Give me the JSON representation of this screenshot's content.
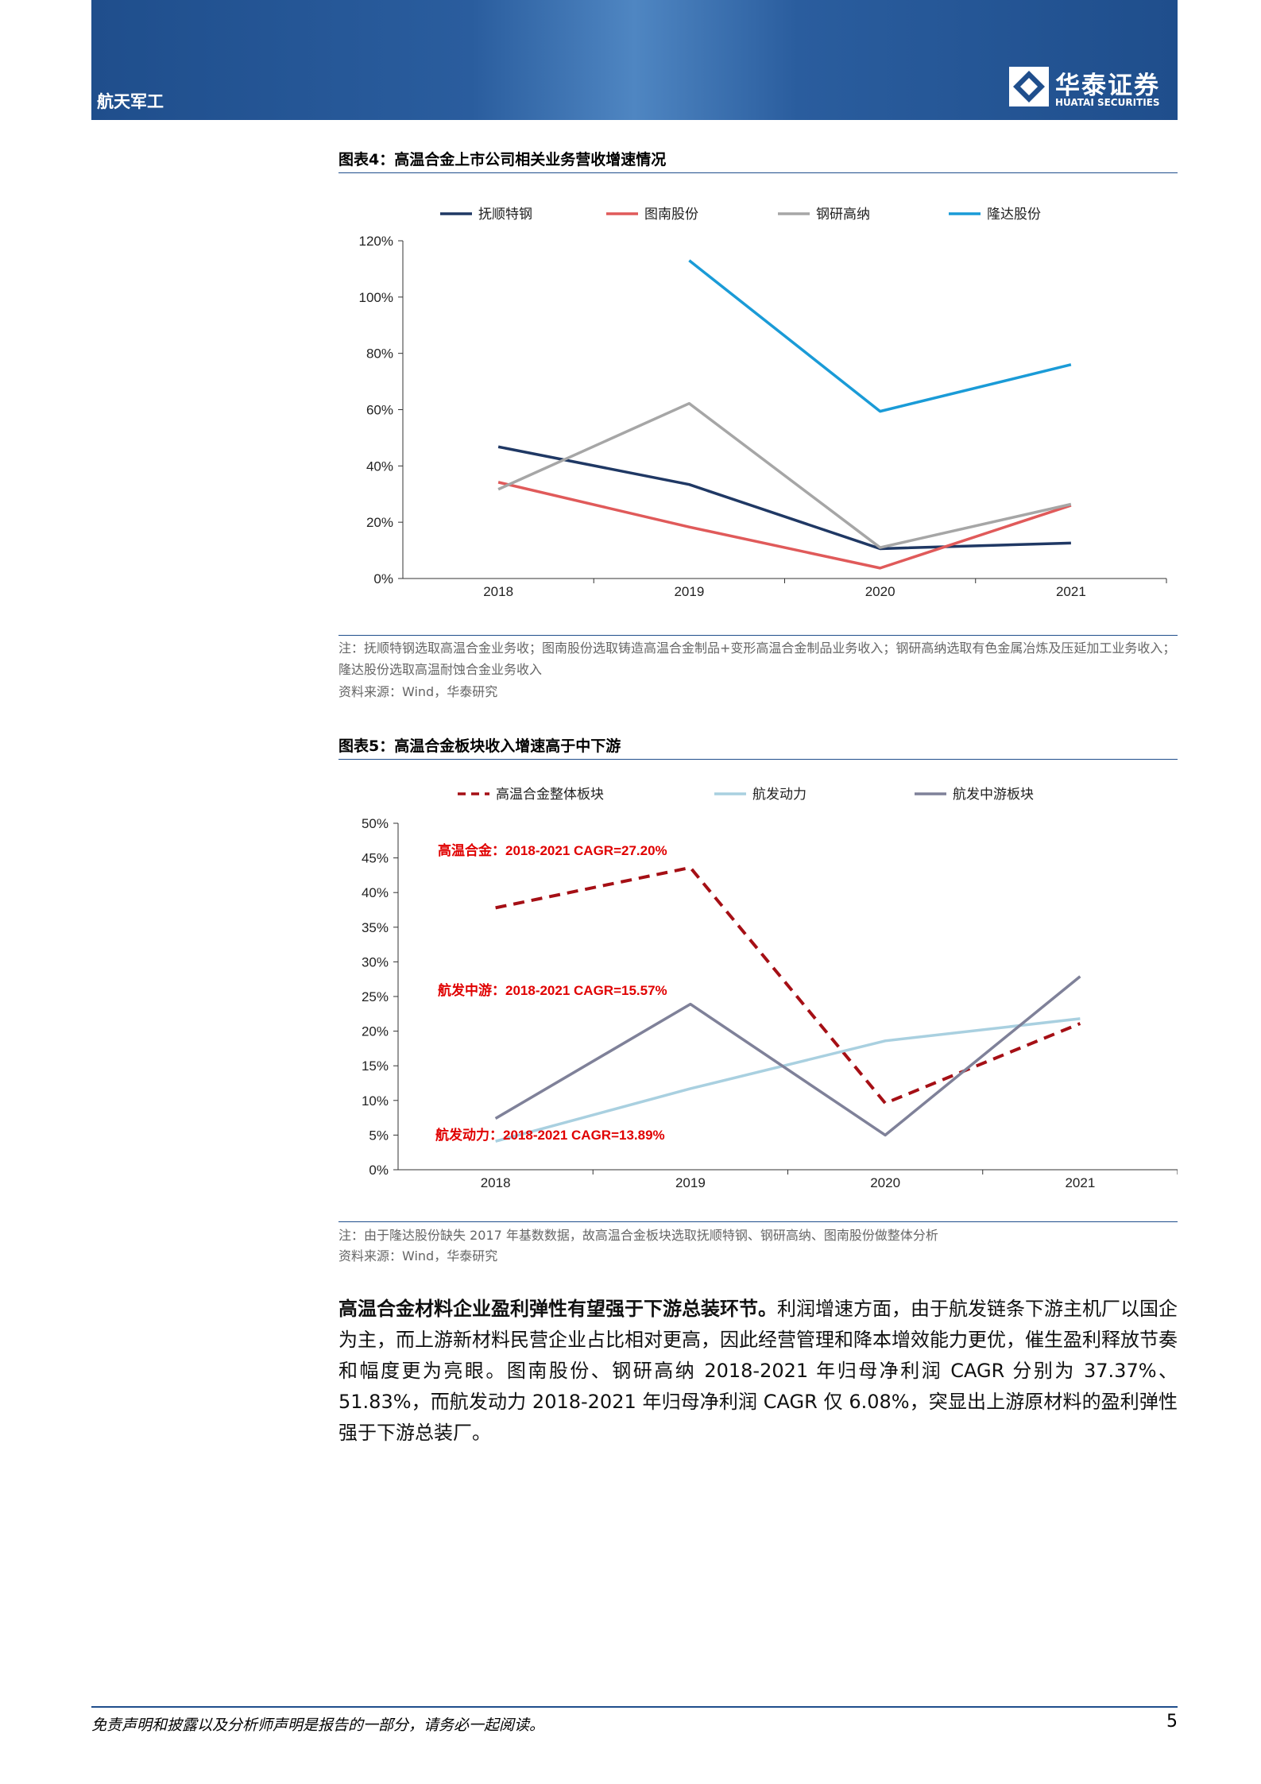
{
  "header": {
    "section": "航天军工",
    "logo_cn": "华泰证券",
    "logo_en": "HUATAI SECURITIES"
  },
  "chart_data": [
    {
      "type": "line",
      "title": "图表4：高温合金上市公司相关业务营收增速情况",
      "categories": [
        "2018",
        "2019",
        "2020",
        "2021"
      ],
      "series": [
        {
          "name": "抚顺特钢",
          "color": "#1f3864",
          "values": [
            46.8,
            33.4,
            10.6,
            12.6
          ]
        },
        {
          "name": "图南股份",
          "color": "#e05a5a",
          "values": [
            34.2,
            18.3,
            3.7,
            26
          ]
        },
        {
          "name": "钢研高纳",
          "color": "#a6a6a6",
          "values": [
            31.7,
            62.2,
            11,
            26.4
          ]
        },
        {
          "name": "隆达股份",
          "color": "#1a9bd7",
          "values": [
            null,
            113,
            59.4,
            76
          ]
        }
      ],
      "ylim": [
        0,
        120
      ],
      "yticks": [
        {
          "value": 0,
          "label": "0%"
        },
        {
          "value": 20,
          "label": "20%"
        },
        {
          "value": 40,
          "label": "40%"
        },
        {
          "value": 60,
          "label": "60%"
        },
        {
          "value": 80,
          "label": "80%"
        },
        {
          "value": 100,
          "label": "100%"
        },
        {
          "value": 120,
          "label": "120%"
        }
      ],
      "grid": false,
      "legend": "top"
    },
    {
      "type": "line",
      "title": "图表5：高温合金板块收入增速高于中下游",
      "categories": [
        "2018",
        "2019",
        "2020",
        "2021"
      ],
      "series": [
        {
          "name": "高温合金整体板块",
          "color": "#a50f15",
          "style": "dashed",
          "values": [
            37.8,
            43.6,
            9.6,
            21.1
          ]
        },
        {
          "name": "航发动力",
          "color": "#a9d0e0",
          "values": [
            4.1,
            11.7,
            18.6,
            21.8
          ]
        },
        {
          "name": "航发中游板块",
          "color": "#7f8199",
          "values": [
            7.4,
            23.9,
            5,
            27.9
          ]
        }
      ],
      "ylim": [
        0,
        50
      ],
      "yticks": [
        {
          "value": 0,
          "label": "0%"
        },
        {
          "value": 5,
          "label": "5%"
        },
        {
          "value": 10,
          "label": "10%"
        },
        {
          "value": 15,
          "label": "15%"
        },
        {
          "value": 20,
          "label": "20%"
        },
        {
          "value": 25,
          "label": "25%"
        },
        {
          "value": 30,
          "label": "30%"
        },
        {
          "value": 35,
          "label": "35%"
        },
        {
          "value": 40,
          "label": "40%"
        },
        {
          "value": 45,
          "label": "45%"
        },
        {
          "value": 50,
          "label": "50%"
        }
      ],
      "annotations": [
        "高温合金：2018-2021 CAGR=27.20%",
        "航发中游：2018-2021 CAGR=15.57%",
        "航发动力：2018-2021 CAGR=13.89%"
      ],
      "annotation_color": "#e00000",
      "grid": false,
      "legend": "top"
    }
  ],
  "notes": [
    {
      "note": "注：抚顺特钢选取高温合金业务收；图南股份选取铸造高温合金制品+变形高温合金制品业务收入；钢研高纳选取有色金属冶炼及压延加工业务收入；隆达股份选取高温耐蚀合金业务收入",
      "source": "资料来源：Wind，华泰研究"
    },
    {
      "note": "注：由于隆达股份缺失 2017 年基数数据，故高温合金板块选取抚顺特钢、钢研高纳、图南股份做整体分析",
      "source": "资料来源：Wind，华泰研究"
    }
  ],
  "body": {
    "lead": "高温合金材料企业盈利弹性有望强于下游总装环节。",
    "text": "利润增速方面，由于航发链条下游主机厂以国企为主，而上游新材料民营企业占比相对更高，因此经营管理和降本增效能力更优，催生盈利释放节奏和幅度更为亮眼。图南股份、钢研高纳 2018-2021 年归母净利润 CAGR 分别为 37.37%、51.83%，而航发动力 2018-2021 年归母净利润 CAGR 仅 6.08%，突显出上游原材料的盈利弹性强于下游总装厂。"
  },
  "footer": {
    "disclaimer": "免责声明和披露以及分析师声明是报告的一部分，请务必一起阅读。",
    "page": 5
  }
}
